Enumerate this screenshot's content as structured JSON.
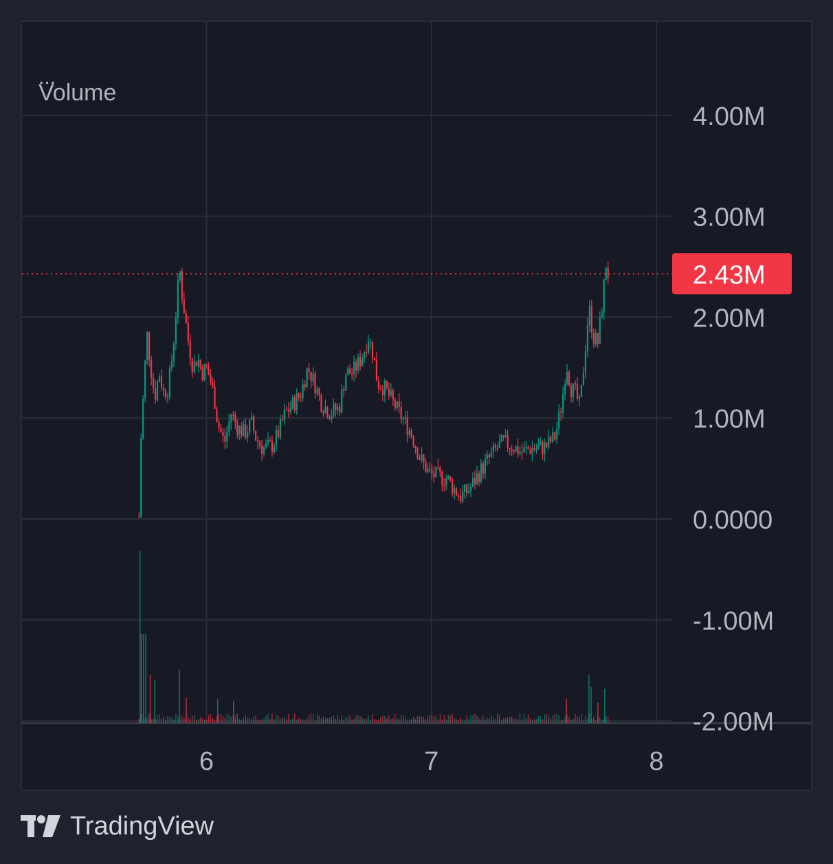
{
  "legend": {
    "dots": "...",
    "volume": "Volume"
  },
  "branding": {
    "text": "TradingView",
    "logo_icon": "tradingview-logo-icon"
  },
  "colors": {
    "up": "#089981",
    "down": "#f23645",
    "grid": "#2a2e39",
    "axis_text": "#b2b5be",
    "price_line": "#f23645",
    "background": "#171a25"
  },
  "chart_data": {
    "type": "candlestick",
    "x_ticks": [
      "6",
      "7",
      "8"
    ],
    "x_range": [
      5.18,
      8.07
    ],
    "y_ticks": [
      "4.00M",
      "3.00M",
      "2.00M",
      "1.00M",
      "0.0000",
      "-1.00M",
      "-2.00M"
    ],
    "y_range": [
      -2.0,
      4.9
    ],
    "y_unit": "M",
    "last_price_label": "2.43M",
    "last_price": 2.43,
    "grid": true,
    "price_anchors": [
      [
        5.7,
        0.02
      ],
      [
        5.705,
        0.65
      ],
      [
        5.72,
        1.25
      ],
      [
        5.735,
        1.85
      ],
      [
        5.75,
        1.55
      ],
      [
        5.77,
        1.2
      ],
      [
        5.79,
        1.45
      ],
      [
        5.81,
        1.25
      ],
      [
        5.83,
        1.3
      ],
      [
        5.85,
        1.65
      ],
      [
        5.87,
        2.2
      ],
      [
        5.88,
        2.5
      ],
      [
        5.89,
        2.25
      ],
      [
        5.905,
        2.0
      ],
      [
        5.92,
        1.75
      ],
      [
        5.94,
        1.5
      ],
      [
        5.96,
        1.6
      ],
      [
        5.98,
        1.45
      ],
      [
        6.0,
        1.5
      ],
      [
        6.02,
        1.35
      ],
      [
        6.035,
        1.2
      ],
      [
        6.05,
        0.95
      ],
      [
        6.08,
        0.75
      ],
      [
        6.11,
        1.05
      ],
      [
        6.14,
        0.9
      ],
      [
        6.17,
        0.85
      ],
      [
        6.2,
        0.95
      ],
      [
        6.22,
        0.8
      ],
      [
        6.25,
        0.7
      ],
      [
        6.29,
        0.72
      ],
      [
        6.32,
        0.85
      ],
      [
        6.35,
        1.05
      ],
      [
        6.39,
        1.15
      ],
      [
        6.42,
        1.25
      ],
      [
        6.45,
        1.5
      ],
      [
        6.48,
        1.35
      ],
      [
        6.51,
        1.15
      ],
      [
        6.55,
        1.05
      ],
      [
        6.59,
        1.1
      ],
      [
        6.62,
        1.45
      ],
      [
        6.65,
        1.45
      ],
      [
        6.69,
        1.6
      ],
      [
        6.72,
        1.8
      ],
      [
        6.74,
        1.65
      ],
      [
        6.76,
        1.35
      ],
      [
        6.79,
        1.3
      ],
      [
        6.83,
        1.15
      ],
      [
        6.87,
        1.0
      ],
      [
        6.91,
        0.85
      ],
      [
        6.95,
        0.6
      ],
      [
        6.99,
        0.45
      ],
      [
        7.03,
        0.42
      ],
      [
        7.07,
        0.4
      ],
      [
        7.1,
        0.3
      ],
      [
        7.13,
        0.22
      ],
      [
        7.17,
        0.3
      ],
      [
        7.21,
        0.45
      ],
      [
        7.25,
        0.58
      ],
      [
        7.29,
        0.7
      ],
      [
        7.32,
        0.76
      ],
      [
        7.36,
        0.72
      ],
      [
        7.4,
        0.66
      ],
      [
        7.44,
        0.7
      ],
      [
        7.48,
        0.7
      ],
      [
        7.51,
        0.72
      ],
      [
        7.55,
        0.82
      ],
      [
        7.58,
        1.15
      ],
      [
        7.6,
        1.55
      ],
      [
        7.62,
        1.3
      ],
      [
        7.64,
        1.25
      ],
      [
        7.66,
        1.1
      ],
      [
        7.68,
        1.6
      ],
      [
        7.7,
        2.1
      ],
      [
        7.72,
        1.8
      ],
      [
        7.74,
        1.75
      ],
      [
        7.76,
        2.15
      ],
      [
        7.78,
        2.62
      ],
      [
        7.785,
        2.43
      ]
    ],
    "volume_spikes": [
      [
        5.705,
        1.0
      ],
      [
        5.71,
        0.52
      ],
      [
        5.72,
        0.52
      ],
      [
        5.73,
        0.52
      ],
      [
        5.75,
        0.28
      ],
      [
        5.77,
        0.25
      ],
      [
        5.88,
        0.31
      ],
      [
        5.91,
        0.15
      ],
      [
        6.05,
        0.14
      ],
      [
        6.12,
        0.13
      ],
      [
        7.6,
        0.14
      ],
      [
        7.7,
        0.28
      ],
      [
        7.71,
        0.21
      ],
      [
        7.74,
        0.12
      ],
      [
        7.77,
        0.2
      ]
    ]
  }
}
